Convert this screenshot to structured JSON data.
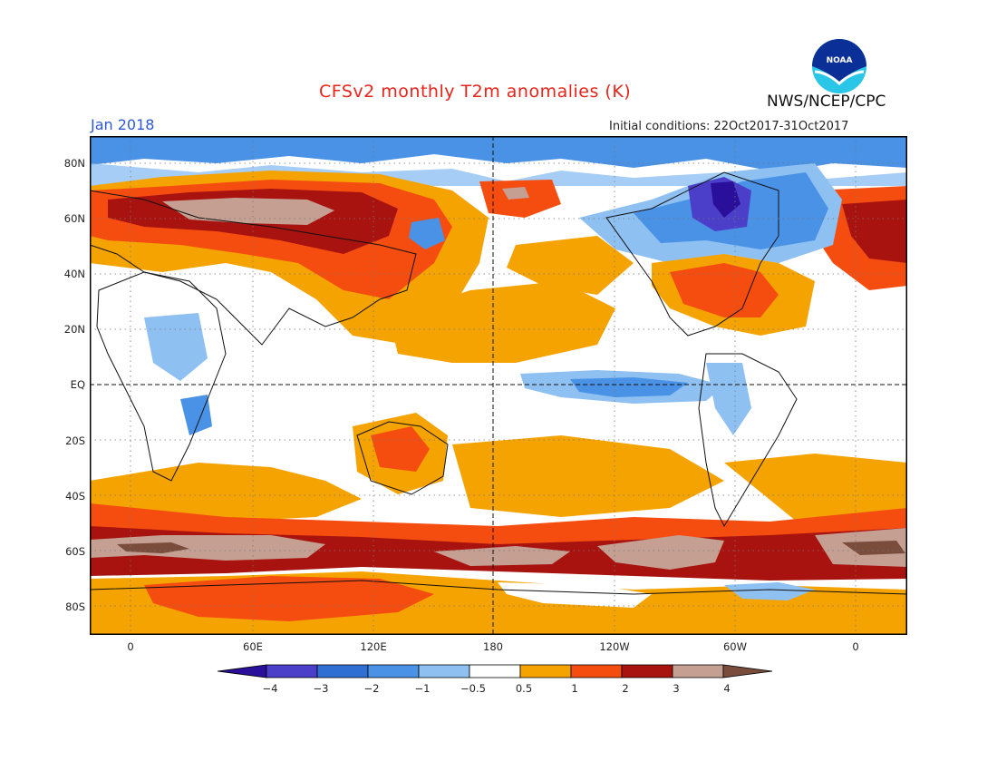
{
  "title": "CFSv2 monthly T2m anomalies (K)",
  "month": "Jan 2018",
  "initial_conditions": "Initial conditions: 22Oct2017-31Oct2017",
  "agency": "NWS/NCEP/CPC",
  "logo_text": "NOAA",
  "y_ticks": [
    "80N",
    "60N",
    "40N",
    "20N",
    "EQ",
    "20S",
    "40S",
    "60S",
    "80S"
  ],
  "x_ticks": [
    "0",
    "60E",
    "120E",
    "180",
    "120W",
    "60W",
    "0"
  ],
  "colorbar": {
    "labels": [
      "−4",
      "−3",
      "−2",
      "−1",
      "−0.5",
      "0.5",
      "1",
      "2",
      "3",
      "4"
    ],
    "colors": [
      "#2a0f9a",
      "#4b3ec8",
      "#2f6fd4",
      "#4a92e6",
      "#8ec0f2",
      "#ffffff",
      "#f5a300",
      "#f54d10",
      "#a8130f",
      "#c49f92",
      "#7a4c3c"
    ]
  },
  "colors": {
    "title": "#e8241a",
    "month": "#2d57d6",
    "ocean_neutral": "#ffffff"
  }
}
